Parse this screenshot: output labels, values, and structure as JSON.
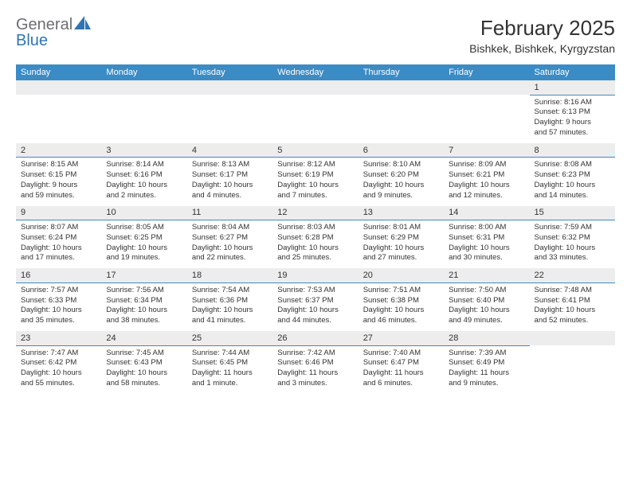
{
  "logo": {
    "text1": "General",
    "text2": "Blue"
  },
  "title": "February 2025",
  "location": "Bishkek, Bishkek, Kyrgyzstan",
  "colors": {
    "header_bg": "#3b8bc5",
    "header_text": "#ffffff",
    "daynum_bg": "#ededed",
    "border": "#3b8bc5",
    "text": "#333333",
    "logo_gray": "#6d6e71",
    "logo_blue": "#2e75b6",
    "background": "#ffffff"
  },
  "typography": {
    "title_fontsize": 26,
    "location_fontsize": 14,
    "dayheader_fontsize": 11,
    "daynum_fontsize": 11,
    "cell_fontsize": 9.5
  },
  "day_headers": [
    "Sunday",
    "Monday",
    "Tuesday",
    "Wednesday",
    "Thursday",
    "Friday",
    "Saturday"
  ],
  "weeks": [
    {
      "nums": [
        "",
        "",
        "",
        "",
        "",
        "",
        "1"
      ],
      "cells": [
        null,
        null,
        null,
        null,
        null,
        null,
        {
          "sunrise": "Sunrise: 8:16 AM",
          "sunset": "Sunset: 6:13 PM",
          "daylight1": "Daylight: 9 hours",
          "daylight2": "and 57 minutes."
        }
      ]
    },
    {
      "nums": [
        "2",
        "3",
        "4",
        "5",
        "6",
        "7",
        "8"
      ],
      "cells": [
        {
          "sunrise": "Sunrise: 8:15 AM",
          "sunset": "Sunset: 6:15 PM",
          "daylight1": "Daylight: 9 hours",
          "daylight2": "and 59 minutes."
        },
        {
          "sunrise": "Sunrise: 8:14 AM",
          "sunset": "Sunset: 6:16 PM",
          "daylight1": "Daylight: 10 hours",
          "daylight2": "and 2 minutes."
        },
        {
          "sunrise": "Sunrise: 8:13 AM",
          "sunset": "Sunset: 6:17 PM",
          "daylight1": "Daylight: 10 hours",
          "daylight2": "and 4 minutes."
        },
        {
          "sunrise": "Sunrise: 8:12 AM",
          "sunset": "Sunset: 6:19 PM",
          "daylight1": "Daylight: 10 hours",
          "daylight2": "and 7 minutes."
        },
        {
          "sunrise": "Sunrise: 8:10 AM",
          "sunset": "Sunset: 6:20 PM",
          "daylight1": "Daylight: 10 hours",
          "daylight2": "and 9 minutes."
        },
        {
          "sunrise": "Sunrise: 8:09 AM",
          "sunset": "Sunset: 6:21 PM",
          "daylight1": "Daylight: 10 hours",
          "daylight2": "and 12 minutes."
        },
        {
          "sunrise": "Sunrise: 8:08 AM",
          "sunset": "Sunset: 6:23 PM",
          "daylight1": "Daylight: 10 hours",
          "daylight2": "and 14 minutes."
        }
      ]
    },
    {
      "nums": [
        "9",
        "10",
        "11",
        "12",
        "13",
        "14",
        "15"
      ],
      "cells": [
        {
          "sunrise": "Sunrise: 8:07 AM",
          "sunset": "Sunset: 6:24 PM",
          "daylight1": "Daylight: 10 hours",
          "daylight2": "and 17 minutes."
        },
        {
          "sunrise": "Sunrise: 8:05 AM",
          "sunset": "Sunset: 6:25 PM",
          "daylight1": "Daylight: 10 hours",
          "daylight2": "and 19 minutes."
        },
        {
          "sunrise": "Sunrise: 8:04 AM",
          "sunset": "Sunset: 6:27 PM",
          "daylight1": "Daylight: 10 hours",
          "daylight2": "and 22 minutes."
        },
        {
          "sunrise": "Sunrise: 8:03 AM",
          "sunset": "Sunset: 6:28 PM",
          "daylight1": "Daylight: 10 hours",
          "daylight2": "and 25 minutes."
        },
        {
          "sunrise": "Sunrise: 8:01 AM",
          "sunset": "Sunset: 6:29 PM",
          "daylight1": "Daylight: 10 hours",
          "daylight2": "and 27 minutes."
        },
        {
          "sunrise": "Sunrise: 8:00 AM",
          "sunset": "Sunset: 6:31 PM",
          "daylight1": "Daylight: 10 hours",
          "daylight2": "and 30 minutes."
        },
        {
          "sunrise": "Sunrise: 7:59 AM",
          "sunset": "Sunset: 6:32 PM",
          "daylight1": "Daylight: 10 hours",
          "daylight2": "and 33 minutes."
        }
      ]
    },
    {
      "nums": [
        "16",
        "17",
        "18",
        "19",
        "20",
        "21",
        "22"
      ],
      "cells": [
        {
          "sunrise": "Sunrise: 7:57 AM",
          "sunset": "Sunset: 6:33 PM",
          "daylight1": "Daylight: 10 hours",
          "daylight2": "and 35 minutes."
        },
        {
          "sunrise": "Sunrise: 7:56 AM",
          "sunset": "Sunset: 6:34 PM",
          "daylight1": "Daylight: 10 hours",
          "daylight2": "and 38 minutes."
        },
        {
          "sunrise": "Sunrise: 7:54 AM",
          "sunset": "Sunset: 6:36 PM",
          "daylight1": "Daylight: 10 hours",
          "daylight2": "and 41 minutes."
        },
        {
          "sunrise": "Sunrise: 7:53 AM",
          "sunset": "Sunset: 6:37 PM",
          "daylight1": "Daylight: 10 hours",
          "daylight2": "and 44 minutes."
        },
        {
          "sunrise": "Sunrise: 7:51 AM",
          "sunset": "Sunset: 6:38 PM",
          "daylight1": "Daylight: 10 hours",
          "daylight2": "and 46 minutes."
        },
        {
          "sunrise": "Sunrise: 7:50 AM",
          "sunset": "Sunset: 6:40 PM",
          "daylight1": "Daylight: 10 hours",
          "daylight2": "and 49 minutes."
        },
        {
          "sunrise": "Sunrise: 7:48 AM",
          "sunset": "Sunset: 6:41 PM",
          "daylight1": "Daylight: 10 hours",
          "daylight2": "and 52 minutes."
        }
      ]
    },
    {
      "nums": [
        "23",
        "24",
        "25",
        "26",
        "27",
        "28",
        ""
      ],
      "cells": [
        {
          "sunrise": "Sunrise: 7:47 AM",
          "sunset": "Sunset: 6:42 PM",
          "daylight1": "Daylight: 10 hours",
          "daylight2": "and 55 minutes."
        },
        {
          "sunrise": "Sunrise: 7:45 AM",
          "sunset": "Sunset: 6:43 PM",
          "daylight1": "Daylight: 10 hours",
          "daylight2": "and 58 minutes."
        },
        {
          "sunrise": "Sunrise: 7:44 AM",
          "sunset": "Sunset: 6:45 PM",
          "daylight1": "Daylight: 11 hours",
          "daylight2": "and 1 minute."
        },
        {
          "sunrise": "Sunrise: 7:42 AM",
          "sunset": "Sunset: 6:46 PM",
          "daylight1": "Daylight: 11 hours",
          "daylight2": "and 3 minutes."
        },
        {
          "sunrise": "Sunrise: 7:40 AM",
          "sunset": "Sunset: 6:47 PM",
          "daylight1": "Daylight: 11 hours",
          "daylight2": "and 6 minutes."
        },
        {
          "sunrise": "Sunrise: 7:39 AM",
          "sunset": "Sunset: 6:49 PM",
          "daylight1": "Daylight: 11 hours",
          "daylight2": "and 9 minutes."
        },
        null
      ]
    }
  ]
}
